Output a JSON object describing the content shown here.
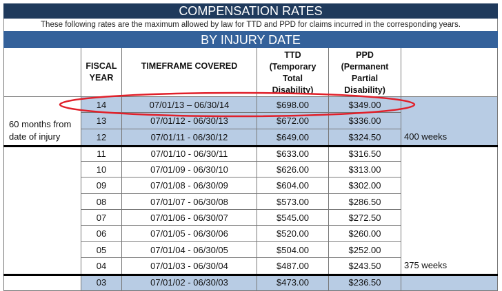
{
  "title": "COMPENSATION RATES",
  "subtitle": "These following rates are the maximum allowed by law for TTD and PPD for claims incurred in the corresponding years.",
  "banner": "BY INJURY DATE",
  "headers": {
    "fiscal_year": "FISCAL YEAR",
    "timeframe": "TIMEFRAME COVERED",
    "ttd": "TTD (Temporary Total Disability)",
    "ppd": "PPD (Permanent Partial Disability)"
  },
  "groups": {
    "first_label": "60 months from date of injury",
    "first_weeks": "400 weeks",
    "second_weeks": "375 weeks"
  },
  "highlight_color": "#b8cce4",
  "annotation_color": "#e0202a",
  "rows": [
    {
      "fy": "14",
      "timeframe": "07/01/13 – 06/30/14",
      "ttd": "$698.00",
      "ppd": "$349.00",
      "highlight": true,
      "circled": true
    },
    {
      "fy": "13",
      "timeframe": "07/01/12 - 06/30/13",
      "ttd": "$672.00",
      "ppd": "$336.00",
      "highlight": true
    },
    {
      "fy": "12",
      "timeframe": "07/01/11 - 06/30/12",
      "ttd": "$649.00",
      "ppd": "$324.50",
      "highlight": true
    },
    {
      "fy": "11",
      "timeframe": "07/01/10 - 06/30/11",
      "ttd": "$633.00",
      "ppd": "$316.50"
    },
    {
      "fy": "10",
      "timeframe": "07/01/09 - 06/30/10",
      "ttd": "$626.00",
      "ppd": "$313.00"
    },
    {
      "fy": "09",
      "timeframe": "07/01/08 - 06/30/09",
      "ttd": "$604.00",
      "ppd": "$302.00"
    },
    {
      "fy": "08",
      "timeframe": "07/01/07 - 06/30/08",
      "ttd": "$573.00",
      "ppd": "$286.50"
    },
    {
      "fy": "07",
      "timeframe": "07/01/06 - 06/30/07",
      "ttd": "$545.00",
      "ppd": "$272.50"
    },
    {
      "fy": "06",
      "timeframe": "07/01/05 - 06/30/06",
      "ttd": "$520.00",
      "ppd": "$260.00"
    },
    {
      "fy": "05",
      "timeframe": "07/01/04 - 06/30/05",
      "ttd": "$504.00",
      "ppd": "$252.00"
    },
    {
      "fy": "04",
      "timeframe": "07/01/03 - 06/30/04",
      "ttd": "$487.00",
      "ppd": "$243.50"
    },
    {
      "fy": "03",
      "timeframe": "07/01/02 - 06/30/03",
      "ttd": "$473.00",
      "ppd": "$236.50",
      "highlight": true
    }
  ]
}
